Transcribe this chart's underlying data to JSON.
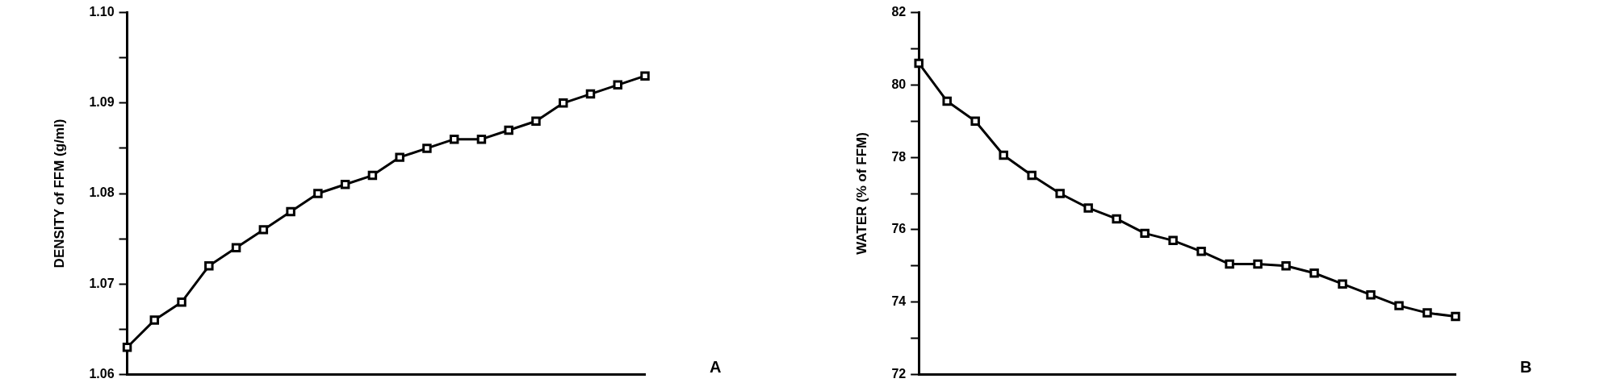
{
  "chart_data": [
    {
      "type": "line",
      "ylabel": "DENSITY of FFM (g/ml)",
      "categories": [
        null,
        null,
        null,
        null,
        null,
        null,
        null,
        null,
        null,
        null,
        null,
        null,
        null,
        null,
        null,
        null,
        null,
        null,
        null,
        null
      ],
      "series": [
        {
          "color": "#000000",
          "values": [
            1.063,
            1.066,
            1.068,
            1.072,
            1.074,
            1.076,
            1.078,
            1.08,
            1.081,
            1.082,
            1.084,
            1.085,
            1.086,
            1.086,
            1.087,
            1.088,
            1.09,
            1.091,
            1.092,
            1.093
          ]
        }
      ],
      "ylim": [
        1.06,
        1.1
      ],
      "yticks": [
        1.06,
        {
          "value": 1.065,
          "label": null
        },
        1.07,
        {
          "value": 1.075,
          "label": null
        },
        1.08,
        {
          "value": 1.085,
          "label": null
        },
        1.09,
        {
          "value": 1.095,
          "label": null
        },
        {
          "value": 1.1,
          "label": "1.10"
        }
      ],
      "marker": "square",
      "line_style": "solid",
      "tick_labels": "y",
      "annotations": [
        "A"
      ]
    },
    {
      "type": "line",
      "ylabel": "WATER (% of FFM)",
      "categories": [
        null,
        null,
        null,
        null,
        null,
        null,
        null,
        null,
        null,
        null,
        null,
        null,
        null,
        null,
        null,
        null,
        null,
        null,
        null,
        null
      ],
      "series": [
        {
          "color": "#000000",
          "values": [
            80.6,
            79.55,
            79.0,
            78.06,
            77.5,
            77.0,
            76.6,
            76.3,
            75.9,
            75.7,
            75.4,
            75.05,
            75.05,
            75.0,
            74.8,
            74.5,
            74.2,
            73.9,
            73.7,
            73.6
          ]
        }
      ],
      "ylim": [
        72,
        82
      ],
      "yticks": [
        72,
        {
          "value": 73,
          "label": null
        },
        74,
        {
          "value": 75,
          "label": null
        },
        76,
        {
          "value": 77,
          "label": null
        },
        78,
        {
          "value": 79,
          "label": null
        },
        80,
        {
          "value": 81,
          "label": null
        },
        82
      ],
      "marker": "square",
      "line_style": "solid",
      "tick_labels": "y",
      "annotations": [
        "B"
      ]
    }
  ]
}
